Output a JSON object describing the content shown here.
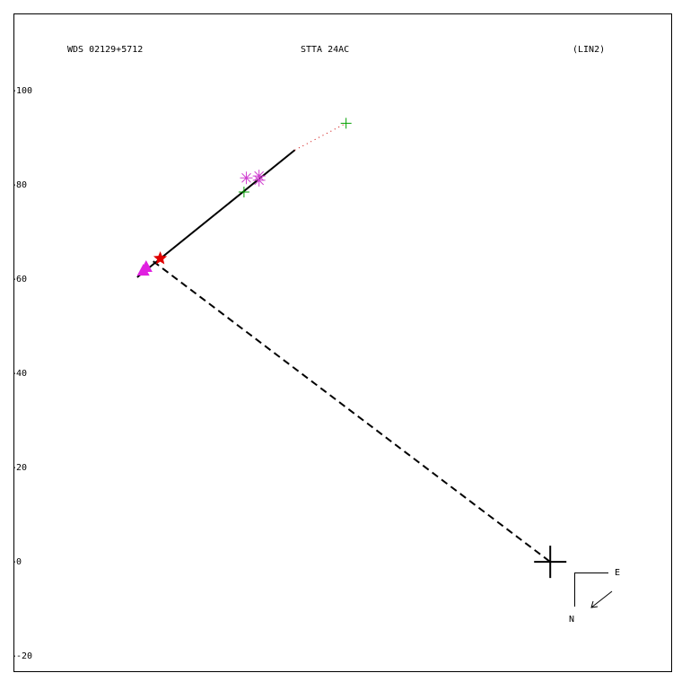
{
  "chart_data": {
    "type": "scatter",
    "labels": [
      "WDS 02129+5712",
      "STTA 24AC",
      "(LIN2)"
    ],
    "xlim": [
      -114.1,
      25.9
    ],
    "ylim": [
      -23.4,
      116.4
    ],
    "yticks": [
      -20,
      0,
      20,
      40,
      60,
      80,
      100
    ],
    "lines": [
      {
        "style": "solid",
        "color": "#000000",
        "x": [
          -87.8,
          -54.3
        ],
        "values": [
          60.4,
          87.4
        ]
      },
      {
        "style": "dotted",
        "color": "#cc0000",
        "x": [
          -54.3,
          -43.4
        ],
        "values": [
          87.4,
          93.1
        ]
      },
      {
        "style": "dashed",
        "color": "#000000",
        "x": [
          -84.4,
          0
        ],
        "values": [
          63.8,
          0
        ]
      }
    ],
    "series": [
      {
        "marker": "plus",
        "color": "#00a000",
        "x": [
          -65.1,
          -43.4
        ],
        "values": [
          78.5,
          93.1
        ]
      },
      {
        "marker": "asterisk",
        "color": "#d040d0",
        "x": [
          -64.6,
          -61.9,
          -61.9
        ],
        "values": [
          81.5,
          81.9,
          81.0
        ]
      },
      {
        "marker": "star",
        "color": "#e00000",
        "x": [
          -82.9
        ],
        "values": [
          64.4
        ]
      },
      {
        "marker": "triangle",
        "color": "#e020e0",
        "x": [
          -86.5,
          -85.9
        ],
        "values": [
          61.9,
          62.7
        ]
      },
      {
        "marker": "bigplus",
        "color": "#000000",
        "x": [
          0
        ],
        "values": [
          0
        ]
      }
    ],
    "compass": {
      "east": "E",
      "north": "N"
    }
  }
}
